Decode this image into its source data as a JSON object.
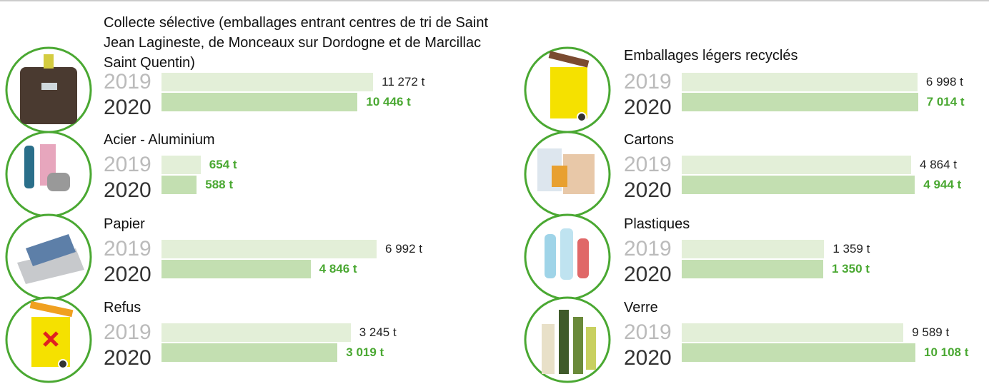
{
  "chart_data": [
    {
      "type": "bar",
      "orientation": "horizontal",
      "title": "Collecte sélective (emballages entrant centres de tri de Saint Jean Lagineste, de Monceaux sur Dordogne et de Marcillac Saint Quentin)",
      "categories": [
        "2019",
        "2020"
      ],
      "values": [
        11272,
        10446
      ],
      "value_labels": [
        "11 272 t",
        "10 446 t"
      ],
      "label_colors": [
        "#222222",
        "#4aa832"
      ],
      "colors": [
        "#e3efd8",
        "#c3dfb1"
      ],
      "xlim": [
        0,
        11800
      ]
    },
    {
      "type": "bar",
      "orientation": "horizontal",
      "title": "Acier - Aluminium",
      "categories": [
        "2019",
        "2020"
      ],
      "values": [
        654,
        588
      ],
      "value_labels": [
        "654 t",
        "588 t"
      ],
      "label_colors": [
        "#4aa832",
        "#4aa832"
      ],
      "colors": [
        "#e3efd8",
        "#c3dfb1"
      ],
      "xlim": [
        0,
        3700
      ]
    },
    {
      "type": "bar",
      "orientation": "horizontal",
      "title": "Papier",
      "categories": [
        "2019",
        "2020"
      ],
      "values": [
        6992,
        4846
      ],
      "value_labels": [
        "6 992 t",
        "4 846 t"
      ],
      "label_colors": [
        "#222222",
        "#4aa832"
      ],
      "colors": [
        "#e3efd8",
        "#c3dfb1"
      ],
      "xlim": [
        0,
        7200
      ]
    },
    {
      "type": "bar",
      "orientation": "horizontal",
      "title": "Refus",
      "categories": [
        "2019",
        "2020"
      ],
      "values": [
        3245,
        3019
      ],
      "value_labels": [
        "3 245 t",
        "3 019 t"
      ],
      "label_colors": [
        "#222222",
        "#4aa832"
      ],
      "colors": [
        "#e3efd8",
        "#c3dfb1"
      ],
      "xlim": [
        0,
        3800
      ]
    },
    {
      "type": "bar",
      "orientation": "horizontal",
      "title": "Emballages légers recyclés",
      "categories": [
        "2019",
        "2020"
      ],
      "values": [
        6998,
        7014
      ],
      "value_labels": [
        "6 998 t",
        "7 014 t"
      ],
      "label_colors": [
        "#222222",
        "#4aa832"
      ],
      "colors": [
        "#e3efd8",
        "#c3dfb1"
      ],
      "xlim": [
        0,
        7000
      ]
    },
    {
      "type": "bar",
      "orientation": "horizontal",
      "title": "Cartons",
      "categories": [
        "2019",
        "2020"
      ],
      "values": [
        4864,
        4944
      ],
      "value_labels": [
        "4 864 t",
        "4 944 t"
      ],
      "label_colors": [
        "#222222",
        "#4aa832"
      ],
      "colors": [
        "#e3efd8",
        "#c3dfb1"
      ],
      "xlim": [
        0,
        5000
      ]
    },
    {
      "type": "bar",
      "orientation": "horizontal",
      "title": "Plastiques",
      "categories": [
        "2019",
        "2020"
      ],
      "values": [
        1359,
        1350
      ],
      "value_labels": [
        "1 359 t",
        "1 350 t"
      ],
      "label_colors": [
        "#222222",
        "#4aa832"
      ],
      "colors": [
        "#e3efd8",
        "#c3dfb1"
      ],
      "xlim": [
        0,
        2250
      ]
    },
    {
      "type": "bar",
      "orientation": "horizontal",
      "title": "Verre",
      "categories": [
        "2019",
        "2020"
      ],
      "values": [
        9589,
        10108
      ],
      "value_labels": [
        "9 589 t",
        "10 108 t"
      ],
      "label_colors": [
        "#222222",
        "#4aa832"
      ],
      "colors": [
        "#e3efd8",
        "#c3dfb1"
      ],
      "xlim": [
        0,
        10200
      ]
    }
  ]
}
